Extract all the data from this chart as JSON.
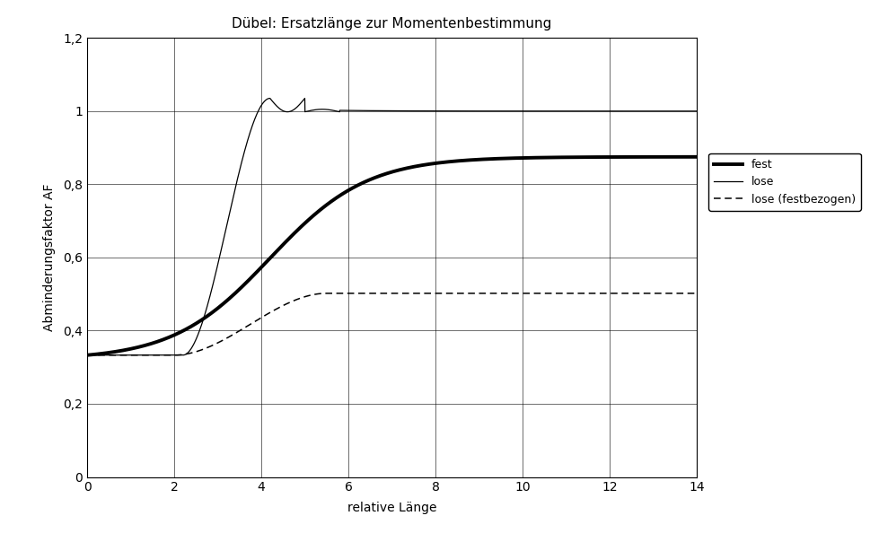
{
  "title": "Dübel: Ersatzlänge zur Momentenbestimmung",
  "xlabel": "relative Länge",
  "ylabel": "Abminderungsfaktor AF",
  "xlim": [
    0,
    14
  ],
  "ylim": [
    0,
    1.2
  ],
  "xticks": [
    0,
    2,
    4,
    6,
    8,
    10,
    12,
    14
  ],
  "yticks": [
    0,
    0.2,
    0.4,
    0.6,
    0.8,
    1.0,
    1.2
  ],
  "ytick_labels": [
    "0",
    "0,2",
    "0,4",
    "0,6",
    "0,8",
    "1",
    "1,2"
  ],
  "legend_entries": [
    "fest",
    "lose",
    "lose (festbezogen)"
  ],
  "background_color": "#ffffff",
  "figsize": [
    9.7,
    6.04
  ],
  "dpi": 100
}
